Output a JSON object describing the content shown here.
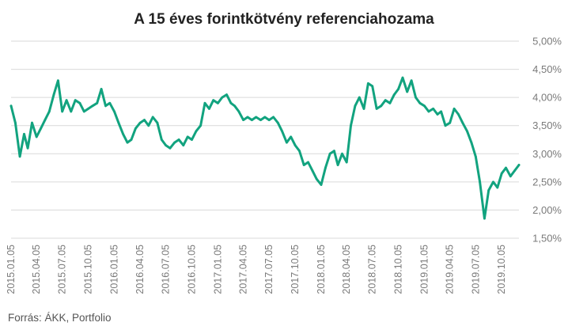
{
  "chart_data": {
    "type": "line",
    "title": "A 15 éves forintkötvény referenciahozama",
    "source": "Forrás: ÁKK, Portfolio",
    "xlabel": "",
    "ylabel": "",
    "ylim": [
      1.5,
      5.0
    ],
    "y_ticks": [
      "5,00%",
      "4,50%",
      "4,00%",
      "3,50%",
      "3,00%",
      "2,50%",
      "2,00%",
      "1,50%"
    ],
    "x_ticks": [
      "2015.01.05",
      "2015.04.05",
      "2015.07.05",
      "2015.10.05",
      "2016.01.05",
      "2016.04.05",
      "2016.07.05",
      "2016.10.05",
      "2017.01.05",
      "2017.04.05",
      "2017.07.05",
      "2017.10.05",
      "2018.01.05",
      "2018.04.05",
      "2018.07.05",
      "2018.10.05",
      "2019.01.05",
      "2019.04.05",
      "2019.07.05",
      "2019.10.05"
    ],
    "grid": true,
    "line_color": "#12a37f",
    "series": [
      {
        "values": [
          {
            "x": "2015.01.05",
            "y": 3.85
          },
          {
            "x": "2015.01.20",
            "y": 3.55
          },
          {
            "x": "2015.02.05",
            "y": 2.95
          },
          {
            "x": "2015.02.20",
            "y": 3.35
          },
          {
            "x": "2015.03.05",
            "y": 3.1
          },
          {
            "x": "2015.03.20",
            "y": 3.55
          },
          {
            "x": "2015.04.05",
            "y": 3.3
          },
          {
            "x": "2015.04.20",
            "y": 3.45
          },
          {
            "x": "2015.05.05",
            "y": 3.6
          },
          {
            "x": "2015.05.20",
            "y": 3.75
          },
          {
            "x": "2015.06.05",
            "y": 4.05
          },
          {
            "x": "2015.06.20",
            "y": 4.3
          },
          {
            "x": "2015.07.05",
            "y": 3.75
          },
          {
            "x": "2015.07.20",
            "y": 3.95
          },
          {
            "x": "2015.08.05",
            "y": 3.75
          },
          {
            "x": "2015.08.20",
            "y": 3.95
          },
          {
            "x": "2015.09.05",
            "y": 3.9
          },
          {
            "x": "2015.09.20",
            "y": 3.75
          },
          {
            "x": "2015.10.05",
            "y": 3.8
          },
          {
            "x": "2015.10.20",
            "y": 3.85
          },
          {
            "x": "2015.11.05",
            "y": 3.9
          },
          {
            "x": "2015.11.20",
            "y": 4.15
          },
          {
            "x": "2015.12.05",
            "y": 3.85
          },
          {
            "x": "2015.12.20",
            "y": 3.9
          },
          {
            "x": "2016.01.05",
            "y": 3.75
          },
          {
            "x": "2016.01.20",
            "y": 3.55
          },
          {
            "x": "2016.02.05",
            "y": 3.35
          },
          {
            "x": "2016.02.20",
            "y": 3.2
          },
          {
            "x": "2016.03.05",
            "y": 3.25
          },
          {
            "x": "2016.03.20",
            "y": 3.45
          },
          {
            "x": "2016.04.05",
            "y": 3.55
          },
          {
            "x": "2016.04.20",
            "y": 3.6
          },
          {
            "x": "2016.05.05",
            "y": 3.5
          },
          {
            "x": "2016.05.20",
            "y": 3.65
          },
          {
            "x": "2016.06.05",
            "y": 3.55
          },
          {
            "x": "2016.06.20",
            "y": 3.25
          },
          {
            "x": "2016.07.05",
            "y": 3.15
          },
          {
            "x": "2016.07.20",
            "y": 3.1
          },
          {
            "x": "2016.08.05",
            "y": 3.2
          },
          {
            "x": "2016.08.20",
            "y": 3.25
          },
          {
            "x": "2016.09.05",
            "y": 3.15
          },
          {
            "x": "2016.09.20",
            "y": 3.3
          },
          {
            "x": "2016.10.05",
            "y": 3.25
          },
          {
            "x": "2016.10.20",
            "y": 3.4
          },
          {
            "x": "2016.11.05",
            "y": 3.5
          },
          {
            "x": "2016.11.20",
            "y": 3.9
          },
          {
            "x": "2016.12.05",
            "y": 3.8
          },
          {
            "x": "2016.12.20",
            "y": 3.95
          },
          {
            "x": "2017.01.05",
            "y": 3.9
          },
          {
            "x": "2017.01.20",
            "y": 4.0
          },
          {
            "x": "2017.02.05",
            "y": 4.05
          },
          {
            "x": "2017.02.20",
            "y": 3.9
          },
          {
            "x": "2017.03.05",
            "y": 3.85
          },
          {
            "x": "2017.03.20",
            "y": 3.75
          },
          {
            "x": "2017.04.05",
            "y": 3.6
          },
          {
            "x": "2017.04.20",
            "y": 3.65
          },
          {
            "x": "2017.05.05",
            "y": 3.6
          },
          {
            "x": "2017.05.20",
            "y": 3.65
          },
          {
            "x": "2017.06.05",
            "y": 3.6
          },
          {
            "x": "2017.06.20",
            "y": 3.65
          },
          {
            "x": "2017.07.05",
            "y": 3.6
          },
          {
            "x": "2017.07.20",
            "y": 3.65
          },
          {
            "x": "2017.08.05",
            "y": 3.55
          },
          {
            "x": "2017.08.20",
            "y": 3.4
          },
          {
            "x": "2017.09.05",
            "y": 3.2
          },
          {
            "x": "2017.09.20",
            "y": 3.3
          },
          {
            "x": "2017.10.05",
            "y": 3.15
          },
          {
            "x": "2017.10.20",
            "y": 3.05
          },
          {
            "x": "2017.11.05",
            "y": 2.8
          },
          {
            "x": "2017.11.20",
            "y": 2.85
          },
          {
            "x": "2017.12.05",
            "y": 2.7
          },
          {
            "x": "2017.12.20",
            "y": 2.55
          },
          {
            "x": "2018.01.05",
            "y": 2.45
          },
          {
            "x": "2018.01.20",
            "y": 2.75
          },
          {
            "x": "2018.02.05",
            "y": 3.0
          },
          {
            "x": "2018.02.20",
            "y": 3.05
          },
          {
            "x": "2018.03.05",
            "y": 2.8
          },
          {
            "x": "2018.03.20",
            "y": 3.0
          },
          {
            "x": "2018.04.05",
            "y": 2.85
          },
          {
            "x": "2018.04.20",
            "y": 3.5
          },
          {
            "x": "2018.05.05",
            "y": 3.85
          },
          {
            "x": "2018.05.20",
            "y": 4.0
          },
          {
            "x": "2018.06.05",
            "y": 3.8
          },
          {
            "x": "2018.06.20",
            "y": 4.25
          },
          {
            "x": "2018.07.05",
            "y": 4.2
          },
          {
            "x": "2018.07.20",
            "y": 3.8
          },
          {
            "x": "2018.08.05",
            "y": 3.85
          },
          {
            "x": "2018.08.20",
            "y": 3.95
          },
          {
            "x": "2018.09.05",
            "y": 3.9
          },
          {
            "x": "2018.09.20",
            "y": 4.05
          },
          {
            "x": "2018.10.05",
            "y": 4.15
          },
          {
            "x": "2018.10.20",
            "y": 4.35
          },
          {
            "x": "2018.11.05",
            "y": 4.1
          },
          {
            "x": "2018.11.20",
            "y": 4.3
          },
          {
            "x": "2018.12.05",
            "y": 4.0
          },
          {
            "x": "2018.12.20",
            "y": 3.9
          },
          {
            "x": "2019.01.05",
            "y": 3.85
          },
          {
            "x": "2019.01.20",
            "y": 3.75
          },
          {
            "x": "2019.02.05",
            "y": 3.8
          },
          {
            "x": "2019.02.20",
            "y": 3.7
          },
          {
            "x": "2019.03.05",
            "y": 3.75
          },
          {
            "x": "2019.03.20",
            "y": 3.5
          },
          {
            "x": "2019.04.05",
            "y": 3.55
          },
          {
            "x": "2019.04.20",
            "y": 3.8
          },
          {
            "x": "2019.05.05",
            "y": 3.7
          },
          {
            "x": "2019.05.20",
            "y": 3.55
          },
          {
            "x": "2019.06.05",
            "y": 3.4
          },
          {
            "x": "2019.06.20",
            "y": 3.2
          },
          {
            "x": "2019.07.05",
            "y": 2.95
          },
          {
            "x": "2019.07.20",
            "y": 2.5
          },
          {
            "x": "2019.08.05",
            "y": 1.85
          },
          {
            "x": "2019.08.20",
            "y": 2.35
          },
          {
            "x": "2019.09.05",
            "y": 2.5
          },
          {
            "x": "2019.09.20",
            "y": 2.4
          },
          {
            "x": "2019.10.05",
            "y": 2.65
          },
          {
            "x": "2019.10.20",
            "y": 2.75
          },
          {
            "x": "2019.11.05",
            "y": 2.6
          },
          {
            "x": "2019.11.20",
            "y": 2.7
          },
          {
            "x": "2019.12.05",
            "y": 2.8
          }
        ]
      }
    ]
  }
}
